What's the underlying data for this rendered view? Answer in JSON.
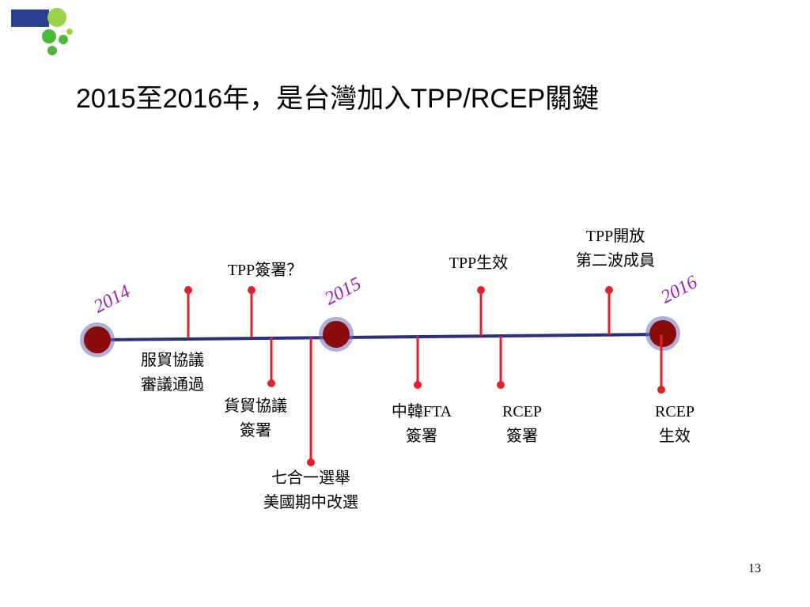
{
  "title": "2015至2016年，是台灣加入TPP/RCEP關鍵",
  "years": [
    "2014",
    "2015",
    "2016"
  ],
  "events": [
    {
      "lines": [
        "服貿協議",
        "審議通過"
      ]
    },
    {
      "lines": [
        "TPP簽署？"
      ]
    },
    {
      "lines": [
        "貨貿協議",
        "簽署"
      ]
    },
    {
      "lines": [
        "七合一選舉",
        "美國期中改選"
      ]
    },
    {
      "lines": [
        "中韓FTA",
        "簽署"
      ]
    },
    {
      "lines": [
        "TPP生效"
      ]
    },
    {
      "lines": [
        "RCEP",
        "簽署"
      ]
    },
    {
      "lines": [
        "TPP開放",
        "第二波成員"
      ]
    },
    {
      "lines": [
        "RCEP",
        "生效"
      ]
    }
  ],
  "page_number": "13"
}
